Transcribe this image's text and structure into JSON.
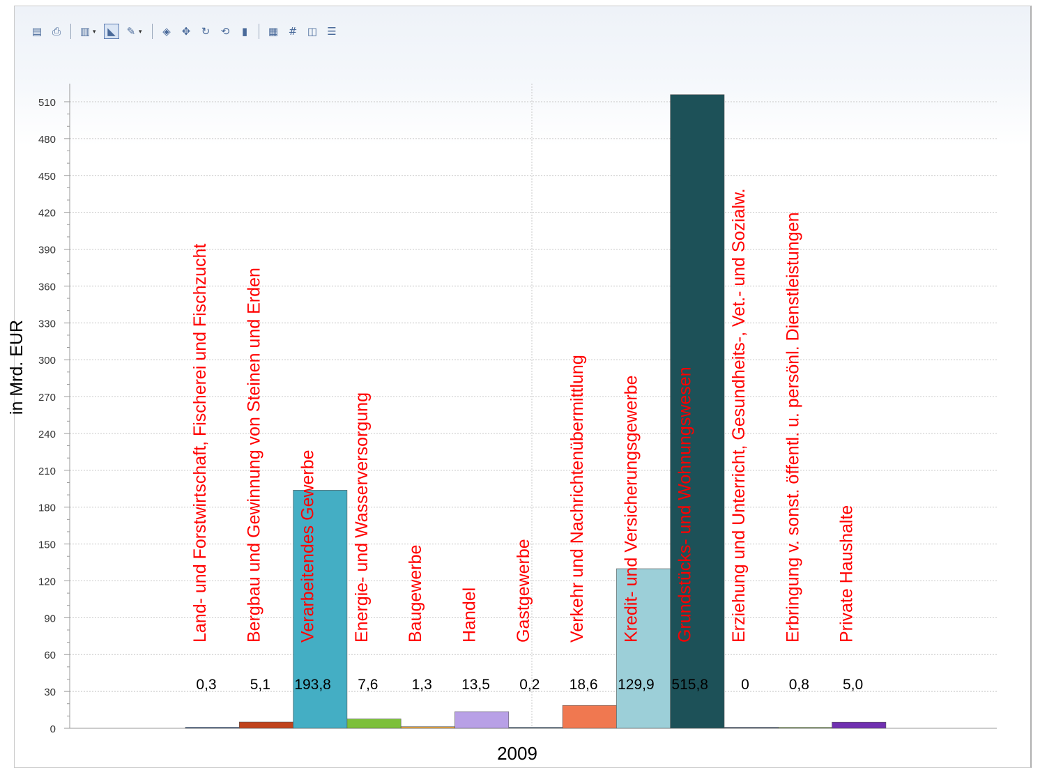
{
  "toolbar": {
    "buttons": [
      {
        "name": "export-icon",
        "glyph": "▤"
      },
      {
        "name": "print-icon",
        "glyph": "⎙"
      },
      {
        "name": "chart-type-icon",
        "glyph": "▥",
        "dropdown": true
      },
      {
        "name": "pointer-icon",
        "glyph": "◣",
        "active": true
      },
      {
        "name": "palette-icon",
        "glyph": "✎",
        "dropdown": true
      },
      {
        "name": "3d-icon",
        "glyph": "◈"
      },
      {
        "name": "rotate-icon",
        "glyph": "✥"
      },
      {
        "name": "tilt-icon",
        "glyph": "↻"
      },
      {
        "name": "perspective-icon",
        "glyph": "⟲"
      },
      {
        "name": "depth-icon",
        "glyph": "▮"
      },
      {
        "name": "data-table-icon",
        "glyph": "▦"
      },
      {
        "name": "value-labels-icon",
        "glyph": "#"
      },
      {
        "name": "zoom-icon",
        "glyph": "◫"
      },
      {
        "name": "legend-icon",
        "glyph": "☰"
      }
    ],
    "separators_after": [
      1,
      4,
      9
    ]
  },
  "chart_data": {
    "type": "bar",
    "xlabel": "2009",
    "ylabel": "in Mrd. EUR",
    "ylim": [
      0,
      515.8
    ],
    "yticks": [
      "0",
      "30",
      "60",
      "90",
      "120",
      "150",
      "180",
      "210",
      "240",
      "270",
      "300",
      "330",
      "360",
      "390",
      "420",
      "450",
      "480",
      "510"
    ],
    "grid": true,
    "series": [
      {
        "name": "Land- und Forstwirtschaft, Fischerei und Fischzucht",
        "value": 0.3,
        "label": "0,3",
        "color": "#4a6fa5"
      },
      {
        "name": "Bergbau und Gewinnung von Steinen und Erden",
        "value": 5.1,
        "label": "5,1",
        "color": "#c0431c"
      },
      {
        "name": "Verarbeitendes Gewerbe",
        "value": 193.8,
        "label": "193,8",
        "color": "#44aec4"
      },
      {
        "name": "Energie- und Wasserversorgung",
        "value": 7.6,
        "label": "7,6",
        "color": "#7cc03a"
      },
      {
        "name": "Baugewerbe",
        "value": 1.3,
        "label": "1,3",
        "color": "#e6a23c"
      },
      {
        "name": "Handel",
        "value": 13.5,
        "label": "13,5",
        "color": "#b8a0e6"
      },
      {
        "name": "Gastgewerbe",
        "value": 0.2,
        "label": "0,2",
        "color": "#6a8aa8"
      },
      {
        "name": "Verkehr und Nachrichtenübermittlung",
        "value": 18.6,
        "label": "18,6",
        "color": "#f07850"
      },
      {
        "name": "Kredit- und Versicherungsgewerbe",
        "value": 129.9,
        "label": "129,9",
        "color": "#9ccfd8"
      },
      {
        "name": "Grundstücks- und Wohnungswesen",
        "value": 515.8,
        "label": "515,8",
        "color": "#1d5158"
      },
      {
        "name": "Erziehung und Unterricht, Gesundheits-, Vet.- und Sozialw.",
        "value": 0,
        "label": "0",
        "color": "#5a7090"
      },
      {
        "name": "Erbringung v. sonst. öffentl. u. persönl. Dienstleistungen",
        "value": 0.8,
        "label": "0,8",
        "color": "#a8c880"
      },
      {
        "name": "Private Haushalte",
        "value": 5.0,
        "label": "5,0",
        "color": "#7030b0"
      }
    ]
  }
}
